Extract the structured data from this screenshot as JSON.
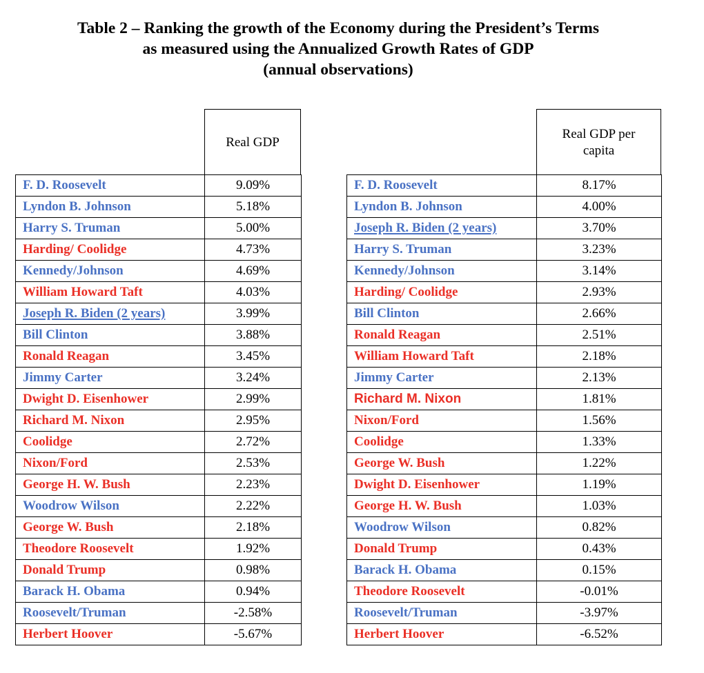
{
  "title": {
    "line1": "Table 2 – Ranking the growth of the Economy during the President’s Terms",
    "line2": "as measured using the Annualized Growth Rates of GDP",
    "line3": "(annual observations)"
  },
  "colors": {
    "democrat": "#4a72c4",
    "republican": "#ea2f26"
  },
  "left_table": {
    "header": "Real GDP",
    "rows": [
      {
        "name": "F. D. Roosevelt",
        "value": "9.09%",
        "party": "D"
      },
      {
        "name": "Lyndon B. Johnson",
        "value": "5.18%",
        "party": "D"
      },
      {
        "name": "Harry S. Truman",
        "value": "5.00%",
        "party": "D"
      },
      {
        "name": "Harding/ Coolidge",
        "value": "4.73%",
        "party": "R"
      },
      {
        "name": "Kennedy/Johnson",
        "value": "4.69%",
        "party": "D"
      },
      {
        "name": "William Howard Taft",
        "value": "4.03%",
        "party": "R"
      },
      {
        "name": "Joseph R. Biden (2 years)",
        "value": "3.99%",
        "party": "D",
        "underline": true
      },
      {
        "name": "Bill Clinton",
        "value": "3.88%",
        "party": "D"
      },
      {
        "name": "Ronald Reagan",
        "value": "3.45%",
        "party": "R"
      },
      {
        "name": "Jimmy Carter",
        "value": "3.24%",
        "party": "D"
      },
      {
        "name": "Dwight D. Eisenhower",
        "value": "2.99%",
        "party": "R"
      },
      {
        "name": "Richard M. Nixon",
        "value": "2.95%",
        "party": "R"
      },
      {
        "name": "Coolidge",
        "value": "2.72%",
        "party": "R"
      },
      {
        "name": "Nixon/Ford",
        "value": "2.53%",
        "party": "R"
      },
      {
        "name": "George H. W. Bush",
        "value": "2.23%",
        "party": "R"
      },
      {
        "name": "Woodrow Wilson",
        "value": "2.22%",
        "party": "D"
      },
      {
        "name": "George W. Bush",
        "value": "2.18%",
        "party": "R"
      },
      {
        "name": "Theodore Roosevelt",
        "value": "1.92%",
        "party": "R"
      },
      {
        "name": "Donald Trump",
        "value": "0.98%",
        "party": "R"
      },
      {
        "name": "Barack H. Obama",
        "value": "0.94%",
        "party": "D"
      },
      {
        "name": "Roosevelt/Truman",
        "value": "-2.58%",
        "party": "D"
      },
      {
        "name": "Herbert Hoover",
        "value": "-5.67%",
        "party": "R"
      }
    ]
  },
  "right_table": {
    "header_line1": "Real GDP per",
    "header_line2": "capita",
    "rows": [
      {
        "name": "F. D. Roosevelt",
        "value": "8.17%",
        "party": "D"
      },
      {
        "name": "Lyndon B. Johnson",
        "value": "4.00%",
        "party": "D"
      },
      {
        "name": "Joseph R. Biden (2 years)",
        "value": "3.70%",
        "party": "D",
        "underline": true
      },
      {
        "name": "Harry S. Truman",
        "value": "3.23%",
        "party": "D"
      },
      {
        "name": "Kennedy/Johnson",
        "value": "3.14%",
        "party": "D"
      },
      {
        "name": "Harding/ Coolidge",
        "value": "2.93%",
        "party": "R"
      },
      {
        "name": "Bill Clinton",
        "value": "2.66%",
        "party": "D"
      },
      {
        "name": "Ronald Reagan",
        "value": "2.51%",
        "party": "R"
      },
      {
        "name": "William Howard Taft",
        "value": "2.18%",
        "party": "R"
      },
      {
        "name": "Jimmy Carter",
        "value": "2.13%",
        "party": "D"
      },
      {
        "name": "Richard M. Nixon",
        "value": "1.81%",
        "party": "R",
        "sans": true
      },
      {
        "name": "Nixon/Ford",
        "value": "1.56%",
        "party": "R"
      },
      {
        "name": "Coolidge",
        "value": "1.33%",
        "party": "R"
      },
      {
        "name": "George W. Bush",
        "value": "1.22%",
        "party": "R"
      },
      {
        "name": "Dwight D. Eisenhower",
        "value": "1.19%",
        "party": "R"
      },
      {
        "name": "George H. W. Bush",
        "value": "1.03%",
        "party": "R"
      },
      {
        "name": "Woodrow Wilson",
        "value": "0.82%",
        "party": "D"
      },
      {
        "name": "Donald Trump",
        "value": "0.43%",
        "party": "R"
      },
      {
        "name": "Barack H. Obama",
        "value": "0.15%",
        "party": "D"
      },
      {
        "name": "Theodore Roosevelt",
        "value": "-0.01%",
        "party": "R"
      },
      {
        "name": "Roosevelt/Truman",
        "value": "-3.97%",
        "party": "D"
      },
      {
        "name": "Herbert Hoover",
        "value": "-6.52%",
        "party": "R"
      }
    ]
  }
}
